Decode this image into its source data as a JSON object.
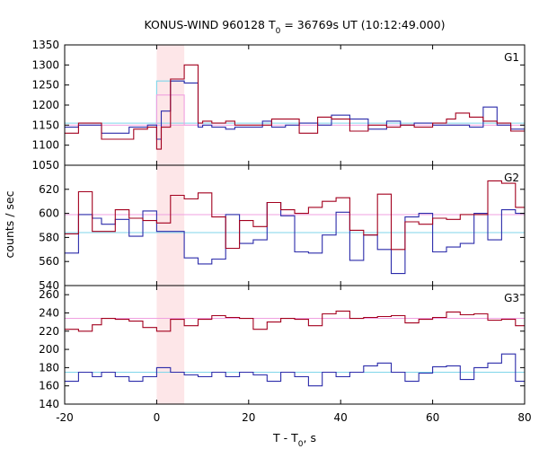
{
  "chart_data": {
    "type": "line",
    "title_parts": [
      "KONUS-WIND 960128 T",
      "0",
      " = 36769s UT (10:12:49.000)"
    ],
    "xlabel_parts": [
      "T - T",
      "0",
      ", s"
    ],
    "ylabel": "counts / sec",
    "xlim": [
      -20,
      80
    ],
    "xticks": [
      -20,
      0,
      20,
      40,
      60,
      80
    ],
    "highlight": {
      "x0": 0,
      "x1": 6,
      "color": "#fde6e8"
    },
    "colors": {
      "red": "#a3001e",
      "blue": "#2b2baa",
      "pink": "#f0a0e0",
      "cyan": "#7fd6ea"
    },
    "panels": [
      {
        "name": "G1",
        "ylim": [
          1050,
          1350
        ],
        "yticks": [
          1050,
          1100,
          1150,
          1200,
          1250,
          1300,
          1350
        ],
        "background_red": 1150,
        "background_blue": 1155,
        "bin_edges": [
          -20,
          -17,
          -12,
          -6,
          -5,
          -2,
          0,
          1,
          3,
          6,
          9,
          10,
          12,
          15,
          17,
          21,
          23,
          25,
          28,
          31,
          35,
          38,
          42,
          46,
          50,
          53,
          56,
          60,
          63,
          65,
          68,
          71,
          74,
          77,
          80
        ],
        "red_values": [
          1130,
          1155,
          1115,
          1115,
          1140,
          1145,
          1090,
          1145,
          1265,
          1300,
          1155,
          1160,
          1155,
          1160,
          1150,
          1150,
          1150,
          1165,
          1165,
          1130,
          1170,
          1165,
          1135,
          1150,
          1145,
          1150,
          1145,
          1155,
          1165,
          1180,
          1170,
          1160,
          1155,
          1135
        ],
        "blue_values": [
          1145,
          1150,
          1130,
          1145,
          1145,
          1150,
          1115,
          1185,
          1260,
          1255,
          1145,
          1150,
          1145,
          1140,
          1145,
          1145,
          1160,
          1145,
          1150,
          1155,
          1150,
          1175,
          1165,
          1140,
          1160,
          1150,
          1155,
          1150,
          1150,
          1150,
          1145,
          1195,
          1150,
          1140
        ],
        "stairs": [
          {
            "color": "cyan",
            "edges": [
              -2,
              0,
              3,
              6,
              9
            ],
            "values": [
              1150,
              1260,
              1260,
              1255
            ]
          },
          {
            "color": "pink",
            "edges": [
              -2,
              0,
              3,
              6,
              9
            ],
            "values": [
              1150,
              1225,
              1225,
              1150
            ]
          }
        ]
      },
      {
        "name": "G2",
        "ylim": [
          540,
          640
        ],
        "yticks": [
          540,
          560,
          580,
          600,
          620
        ],
        "background_red": 599,
        "background_blue": 584,
        "bin_edges": [
          -20,
          -17,
          -14,
          -12,
          -9,
          -6,
          -3,
          0,
          3,
          6,
          9,
          12,
          15,
          18,
          21,
          24,
          27,
          30,
          33,
          36,
          39,
          42,
          45,
          48,
          51,
          54,
          57,
          60,
          63,
          66,
          69,
          72,
          75,
          78,
          80
        ],
        "red_values": [
          583,
          618,
          585,
          585,
          603,
          596,
          594,
          592,
          615,
          612,
          617,
          597,
          571,
          594,
          589,
          609,
          603,
          600,
          605,
          610,
          613,
          586,
          582,
          616,
          570,
          593,
          591,
          596,
          595,
          599,
          599,
          627,
          625,
          605
        ],
        "blue_values": [
          567,
          599,
          596,
          591,
          595,
          581,
          602,
          585,
          585,
          563,
          558,
          562,
          599,
          575,
          578,
          609,
          598,
          568,
          567,
          582,
          601,
          561,
          582,
          570,
          550,
          597,
          600,
          568,
          572,
          575,
          600,
          578,
          603,
          600
        ],
        "stairs": []
      },
      {
        "name": "G3",
        "ylim": [
          140,
          270
        ],
        "yticks": [
          140,
          160,
          180,
          200,
          220,
          240,
          260
        ],
        "background_red": 234,
        "background_blue": 175,
        "bin_edges": [
          -20,
          -17,
          -14,
          -12,
          -9,
          -6,
          -3,
          0,
          3,
          6,
          9,
          12,
          15,
          18,
          21,
          24,
          27,
          30,
          33,
          36,
          39,
          42,
          45,
          48,
          51,
          54,
          57,
          60,
          63,
          66,
          69,
          72,
          75,
          78,
          80
        ],
        "red_values": [
          222,
          220,
          227,
          234,
          233,
          231,
          224,
          220,
          233,
          226,
          233,
          237,
          235,
          234,
          222,
          230,
          234,
          233,
          226,
          239,
          242,
          234,
          235,
          236,
          237,
          229,
          233,
          235,
          241,
          238,
          239,
          232,
          233,
          226
        ],
        "blue_values": [
          165,
          175,
          170,
          175,
          170,
          165,
          170,
          180,
          175,
          172,
          170,
          175,
          170,
          175,
          172,
          165,
          175,
          170,
          160,
          175,
          170,
          175,
          182,
          185,
          175,
          165,
          174,
          181,
          182,
          167,
          180,
          185,
          195,
          165
        ],
        "stairs": []
      }
    ]
  }
}
